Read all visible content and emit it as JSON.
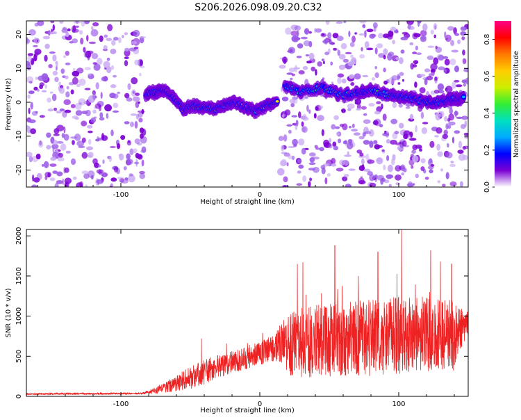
{
  "figure_title": "S206.2026.098.09.20.C32",
  "chart_data": [
    {
      "type": "heatmap",
      "name": "spectrogram",
      "title": "S206.2026.098.09.20.C32",
      "xlabel": "Height of straight line (km)",
      "ylabel": "Frequency (Hz)",
      "xlim": [
        -168,
        150
      ],
      "ylim": [
        -25,
        24
      ],
      "xticks": [
        -100,
        0,
        100
      ],
      "yticks": [
        -20,
        -10,
        0,
        10,
        20
      ],
      "colorbar": {
        "label": "Normalized spectral amplitude",
        "range": [
          0.0,
          0.9
        ],
        "ticks": [
          0.0,
          0.2,
          0.4,
          0.6,
          0.8
        ],
        "colormap": [
          "#ffffff",
          "#7b00d4",
          "#0000ff",
          "#00aaff",
          "#00e0c0",
          "#33ee33",
          "#ccee00",
          "#ffcc00",
          "#ff7700",
          "#ff0000",
          "#ff0088"
        ]
      },
      "features": {
        "noise_regions": [
          [
            -168,
            -83
          ],
          [
            15,
            150
          ]
        ],
        "quiet_region": [
          -83,
          15
        ],
        "ridge_points": [
          [
            -82,
            2.5
          ],
          [
            -75,
            3.0
          ],
          [
            -68,
            3.5
          ],
          [
            -62,
            1.5
          ],
          [
            -55,
            -2.0
          ],
          [
            -48,
            -1.0
          ],
          [
            -40,
            -1.5
          ],
          [
            -32,
            -2.0
          ],
          [
            -25,
            -1.0
          ],
          [
            -18,
            0.0
          ],
          [
            -10,
            -1.5
          ],
          [
            -3,
            -2.5
          ],
          [
            5,
            -1.0
          ],
          [
            13,
            0.5
          ]
        ],
        "upper_ridge_points": [
          [
            18,
            5.0
          ],
          [
            30,
            3.0
          ],
          [
            45,
            4.5
          ],
          [
            60,
            2.0
          ],
          [
            72,
            3.0
          ],
          [
            80,
            3.5
          ],
          [
            95,
            2.0
          ],
          [
            105,
            1.5
          ],
          [
            115,
            0.5
          ],
          [
            125,
            0.0
          ],
          [
            135,
            0.5
          ],
          [
            142,
            1.0
          ],
          [
            147,
            1.5
          ]
        ]
      }
    },
    {
      "type": "line",
      "name": "snr",
      "xlabel": "Height of straight line (km)",
      "ylabel": "SNR (10 * v/v)",
      "xlim": [
        -168,
        150
      ],
      "ylim": [
        0,
        2080
      ],
      "xticks": [
        -100,
        0,
        100
      ],
      "yticks": [
        0,
        500,
        1000,
        1500,
        2000
      ],
      "color": "#ee2222",
      "envelope": {
        "x": [
          -168,
          -85,
          -75,
          -65,
          -55,
          -45,
          -38,
          -30,
          -20,
          -10,
          0,
          10,
          18,
          20,
          25,
          35,
          50,
          70,
          90,
          100,
          110,
          120,
          130,
          140,
          145,
          150
        ],
        "center": [
          30,
          35,
          70,
          130,
          200,
          260,
          320,
          370,
          430,
          470,
          540,
          600,
          680,
          640,
          650,
          680,
          700,
          720,
          740,
          760,
          760,
          770,
          760,
          760,
          850,
          900
        ],
        "spread": [
          10,
          10,
          40,
          80,
          120,
          160,
          160,
          140,
          140,
          140,
          150,
          170,
          300,
          380,
          420,
          450,
          460,
          470,
          480,
          490,
          480,
          470,
          460,
          450,
          250,
          150
        ]
      },
      "peaks": [
        [
          -42,
          720
        ],
        [
          -24,
          660
        ],
        [
          2,
          790
        ],
        [
          27,
          1650
        ],
        [
          31,
          1670
        ],
        [
          54,
          1880
        ],
        [
          85,
          1800
        ],
        [
          102,
          2080
        ],
        [
          123,
          1820
        ],
        [
          130,
          1680
        ],
        [
          138,
          1650
        ]
      ]
    }
  ]
}
